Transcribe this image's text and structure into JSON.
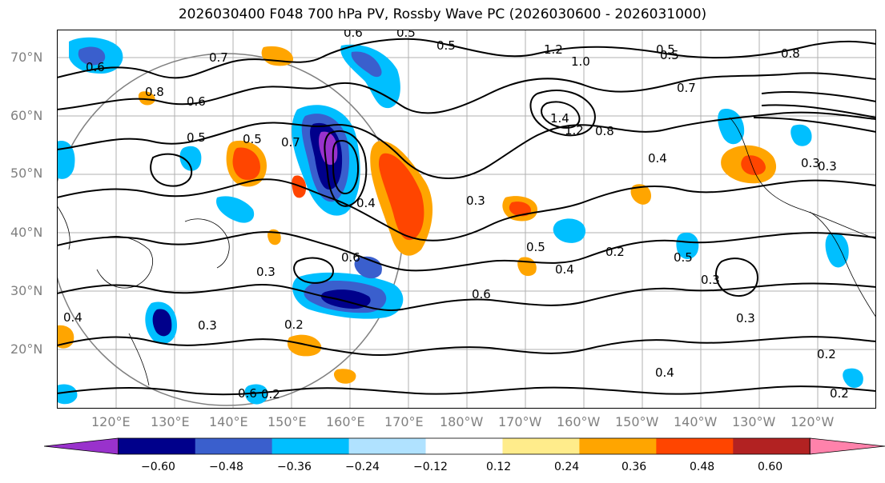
{
  "title": "2026030400 F048 700 hPa PV, Rossby Wave PC (2026030600 - 2026031000)",
  "lat_labels": [
    "70°N",
    "60°N",
    "50°N",
    "40°N",
    "30°N",
    "20°N"
  ],
  "lon_labels": [
    "120°E",
    "130°E",
    "140°E",
    "150°E",
    "160°E",
    "170°E",
    "180°W",
    "170°W",
    "160°W",
    "150°W",
    "140°W",
    "130°W",
    "120°W"
  ],
  "colorbar": {
    "ticks": [
      "−0.60",
      "−0.48",
      "−0.36",
      "−0.24",
      "−0.12",
      "0.12",
      "0.24",
      "0.36",
      "0.48",
      "0.60"
    ],
    "bounds": [
      -0.6,
      -0.48,
      -0.36,
      -0.24,
      -0.12,
      0.12,
      0.24,
      0.36,
      0.48,
      0.6
    ],
    "colors": [
      "#9932CC",
      "#00008B",
      "#3A5FCD",
      "#00BFFF",
      "#B0E2FF",
      "#FFFFFF",
      "#FFEC8B",
      "#FFA500",
      "#FF4500",
      "#B22222",
      "#FF82AB"
    ]
  },
  "contour_labels": [
    "0.6",
    "0.5",
    "0.5",
    "1.2",
    "0.5",
    "0.8",
    "0.6",
    "0.7",
    "0.8",
    "0.6",
    "0.5",
    "0.7",
    "1.0",
    "1.4",
    "1.2",
    "0.8",
    "0.4",
    "0.7",
    "0.5",
    "0.3",
    "0.3",
    "0.3",
    "0.6",
    "0.5",
    "0.4",
    "0.2",
    "0.5",
    "0.3",
    "0.6",
    "0.4",
    "0.3",
    "0.3",
    "0.2",
    "0.4",
    "0.2",
    "0.2",
    "0.3",
    "0.2",
    "0.4",
    "0.5",
    "0.6"
  ]
}
